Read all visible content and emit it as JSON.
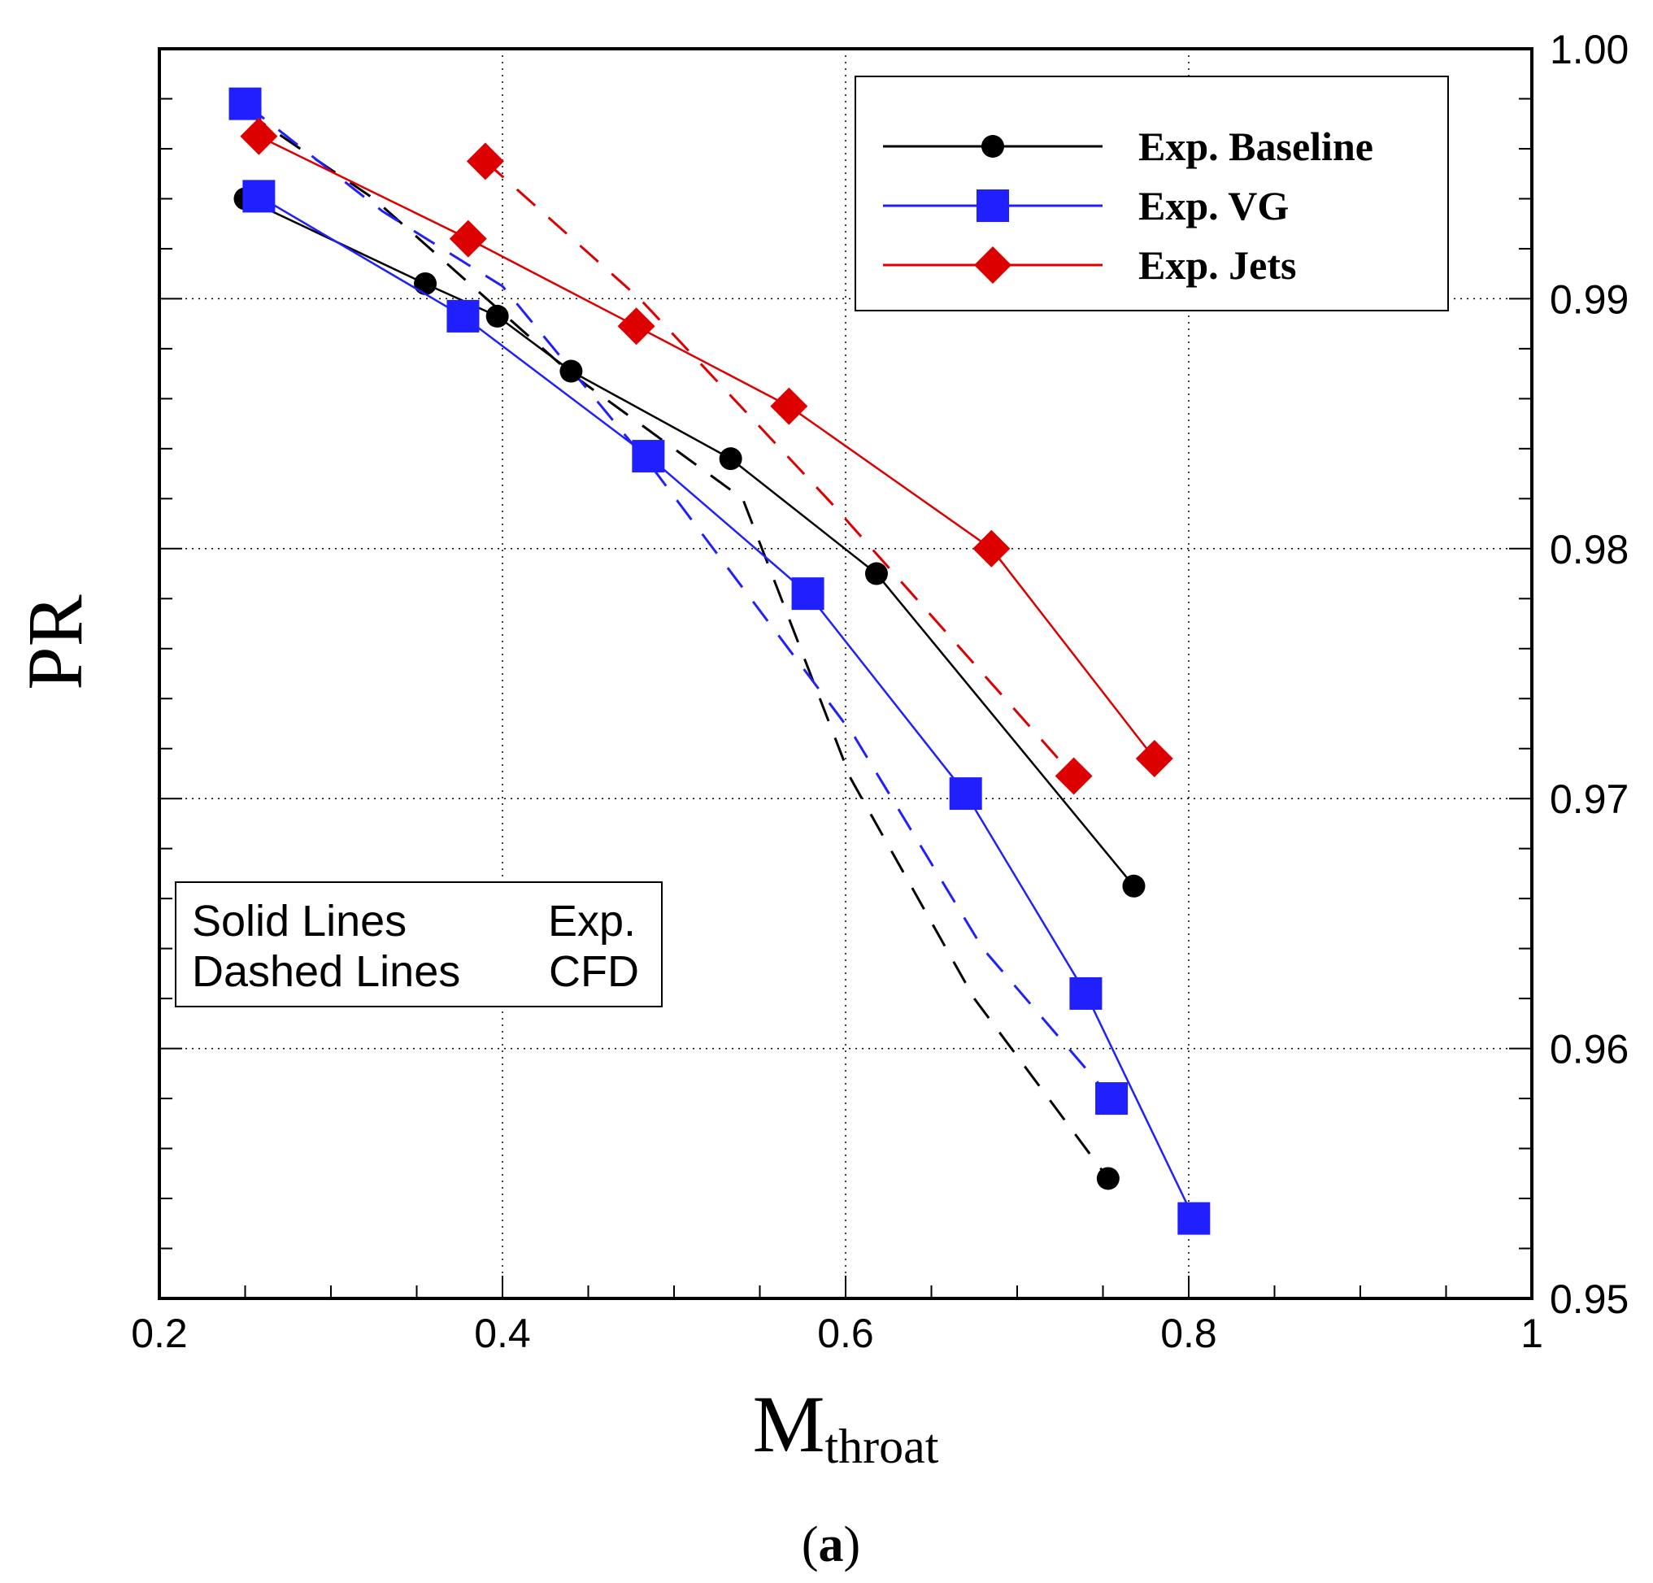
{
  "chart_data": {
    "type": "line",
    "xlabel": "M",
    "xlabel_subscript": "throat",
    "ylabel": "PR",
    "caption_open": "(",
    "caption_letter": "a",
    "caption_close": ")",
    "xlim": [
      0.2,
      1.0
    ],
    "ylim": [
      0.95,
      1.0
    ],
    "x_ticks": [
      0.2,
      0.4,
      0.6,
      0.8,
      1.0
    ],
    "x_tick_labels": [
      "0.2",
      "0.4",
      "0.6",
      "0.8",
      "1"
    ],
    "y_ticks": [
      0.95,
      0.96,
      0.97,
      0.98,
      0.99,
      1.0
    ],
    "y_tick_labels": [
      "0.95",
      "0.96",
      "0.97",
      "0.98",
      "0.99",
      "1.00"
    ],
    "y_axis_side": "right",
    "grid": true,
    "legend_position": "top-right",
    "series": [
      {
        "name": "Exp. Baseline",
        "color": "#000000",
        "marker": "circle",
        "style": "solid",
        "x": [
          0.25,
          0.355,
          0.397,
          0.44,
          0.533,
          0.618,
          0.768
        ],
        "y": [
          0.994,
          0.9906,
          0.9893,
          0.9871,
          0.9836,
          0.979,
          0.9665
        ]
      },
      {
        "name": "Exp. VG",
        "color": "#2020ff",
        "marker": "square",
        "style": "solid",
        "x": [
          0.258,
          0.377,
          0.485,
          0.578,
          0.67,
          0.74,
          0.803
        ],
        "y": [
          0.9941,
          0.9893,
          0.9837,
          0.9782,
          0.9702,
          0.9622,
          0.9532
        ]
      },
      {
        "name": "Exp. Jets",
        "color": "#dd0000",
        "marker": "diamond",
        "style": "solid",
        "x": [
          0.258,
          0.38,
          0.478,
          0.567,
          0.685,
          0.78
        ],
        "y": [
          0.9965,
          0.9924,
          0.9889,
          0.9857,
          0.98,
          0.9716
        ]
      },
      {
        "name": "CFD Baseline",
        "color": "#000000",
        "marker": "circle",
        "style": "dashed",
        "x": [
          0.25,
          0.325,
          0.44,
          0.54,
          0.603,
          0.675,
          0.753
        ],
        "y": [
          0.9975,
          0.994,
          0.987,
          0.982,
          0.9708,
          0.962,
          0.9548
        ]
      },
      {
        "name": "CFD VG",
        "color": "#2020ff",
        "marker": "square",
        "style": "dashed",
        "x": [
          0.25,
          0.33,
          0.4,
          0.49,
          0.605,
          0.68,
          0.755
        ],
        "y": [
          0.9978,
          0.9935,
          0.9905,
          0.983,
          0.9725,
          0.964,
          0.958
        ]
      },
      {
        "name": "CFD Jets",
        "color": "#dd0000",
        "marker": "diamond",
        "style": "dashed",
        "x": [
          0.39,
          0.48,
          0.592,
          0.733
        ],
        "y": [
          0.9955,
          0.99,
          0.9818,
          0.9709
        ]
      }
    ],
    "legend": [
      {
        "label": "Exp. Baseline",
        "color": "#000000",
        "marker": "circle"
      },
      {
        "label": "Exp. VG",
        "color": "#2020ff",
        "marker": "square"
      },
      {
        "label": "Exp. Jets",
        "color": "#dd0000",
        "marker": "diamond"
      }
    ],
    "annotation": {
      "line1_left": "Solid Lines",
      "line1_right": "Exp.",
      "line2_left": "Dashed Lines",
      "line2_right": "CFD"
    }
  }
}
